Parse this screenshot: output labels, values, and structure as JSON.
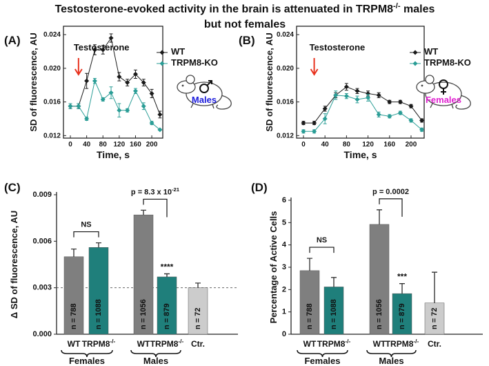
{
  "title": [
    "Testosterone-evoked activity in the brain is attenuated in TRPM8-/- males",
    "but not females"
  ],
  "chart_data": [
    {
      "type": "line",
      "panel": "(A)",
      "x": [
        0,
        20,
        40,
        60,
        80,
        100,
        120,
        140,
        160,
        180,
        200,
        220
      ],
      "series": [
        {
          "name": "WT",
          "color": "#1a1a1a",
          "values": [
            0.0155,
            0.0155,
            0.0185,
            0.0222,
            0.0222,
            0.0236,
            0.019,
            0.0183,
            0.0193,
            0.0183,
            0.017,
            0.0145
          ],
          "errors": [
            0.0003,
            0.0003,
            0.0009,
            0.0006,
            0.0005,
            0.0005,
            0.0005,
            0.0004,
            0.0005,
            0.0004,
            0.0005,
            0.0004
          ]
        },
        {
          "name": "TRPM8-KO",
          "color": "#2a9d96",
          "values": [
            0.0155,
            0.0155,
            0.014,
            0.0185,
            0.0163,
            0.0171,
            0.015,
            0.015,
            0.0173,
            0.0155,
            0.0135,
            0.0127
          ],
          "errors": [
            0.0003,
            0.0003,
            0.0002,
            0.0003,
            0.0002,
            0.0007,
            0.0008,
            0.0002,
            0.0003,
            0.0004,
            0.0002,
            0.0001
          ]
        }
      ],
      "xlabel": "Time, s",
      "ylabel": "SD of fluorescence, AU",
      "xlim": [
        -17,
        227
      ],
      "ylim": [
        0.0117,
        0.025
      ],
      "xticks": [
        0,
        40,
        80,
        120,
        160,
        200
      ],
      "yticks": [
        0.012,
        0.016,
        {
          "value": 0.02,
          "label": "0.020"
        },
        0.024
      ],
      "annotation": "Testosterone",
      "stimulus_x": 20,
      "arrow_color": "#e8321e",
      "inset_label": "Males",
      "inset_color": "#1a1adb"
    },
    {
      "type": "line",
      "panel": "(B)",
      "x": [
        0,
        20,
        40,
        60,
        80,
        100,
        120,
        140,
        160,
        180,
        200,
        220
      ],
      "series": [
        {
          "name": "WT",
          "color": "#1a1a1a",
          "values": [
            0.0135,
            0.0135,
            0.0152,
            0.0168,
            0.0178,
            0.0173,
            0.017,
            0.0168,
            0.016,
            0.016,
            0.0155,
            0.0138
          ],
          "errors": [
            0.0002,
            0.0002,
            0.0003,
            0.0003,
            0.0004,
            0.0003,
            0.0003,
            0.0003,
            0.0002,
            0.0002,
            0.0002,
            0.0002
          ]
        },
        {
          "name": "TRPM8-KO",
          "color": "#2a9d96",
          "values": [
            0.0125,
            0.0125,
            0.014,
            0.0168,
            0.0167,
            0.0163,
            0.0165,
            0.0145,
            0.0143,
            0.0147,
            0.0138,
            0.0127
          ],
          "errors": [
            0.0002,
            0.0002,
            0.0006,
            0.0005,
            0.0003,
            0.0004,
            0.0004,
            0.0003,
            0.0002,
            0.0002,
            0.0002,
            0.0002
          ]
        }
      ],
      "xlabel": "Time, s",
      "ylabel": "SD of fluorescence, AU",
      "xlim": [
        -12.8,
        224.4
      ],
      "ylim": [
        0.0117,
        0.025
      ],
      "xticks": [
        0,
        40,
        80,
        120,
        160,
        200
      ],
      "yticks": [
        0.012,
        0.016,
        {
          "value": 0.02,
          "label": "0.020"
        },
        0.024
      ],
      "annotation": "Testosterone",
      "stimulus_x": 20,
      "arrow_color": "#e8321e",
      "inset_label": "Females",
      "inset_color": "#e020d0"
    },
    {
      "type": "bar",
      "panel": "(C)",
      "categories": [
        "WT",
        "TRPM8-/-",
        "WT",
        "TRPM8-/-",
        "Ctr."
      ],
      "values": [
        0.005,
        0.0056,
        0.0077,
        0.0037,
        0.003
      ],
      "errors": [
        0.0005,
        0.0003,
        0.0003,
        0.0002,
        0.0003
      ],
      "colors": [
        "#7f7f7f",
        "#1f7f7b",
        "#7f7f7f",
        "#1f7f7b",
        "#cccccc"
      ],
      "bar_labels": [
        "n = 788",
        "n = 1088",
        "n = 1056",
        "n = 879",
        "n = 72"
      ],
      "groups": [
        "Females",
        "Males"
      ],
      "brackets": [
        "NS",
        "p = 8.3 x 10-21"
      ],
      "annotations": [
        "****"
      ],
      "ylabel": "Δ SD of fluorescence, AU",
      "ylim": [
        0,
        0.009
      ],
      "yticks": [
        {
          "value": 0,
          "label": "0.000"
        },
        0.003,
        0.006,
        0.009
      ],
      "reference_line": 0.003
    },
    {
      "type": "bar",
      "panel": "(D)",
      "categories": [
        "WT",
        "TRPM8-/-",
        "WT",
        "TRPM8-/-",
        "Ctr."
      ],
      "values": [
        2.85,
        2.12,
        4.92,
        1.82,
        1.4
      ],
      "errors": [
        0.55,
        0.42,
        0.65,
        0.45,
        1.38
      ],
      "colors": [
        "#7f7f7f",
        "#1f7f7b",
        "#7f7f7f",
        "#1f7f7b",
        "#cccccc"
      ],
      "bar_labels": [
        "n = 788",
        "n = 1088",
        "n = 1056",
        "n = 879",
        "n = 72"
      ],
      "groups": [
        "Females",
        "Males"
      ],
      "brackets": [
        "NS",
        "p = 0.0002"
      ],
      "annotations": [
        "***"
      ],
      "ylabel": "Percentage of Active Cells",
      "ylim": [
        0,
        6
      ],
      "yticks": [
        0,
        1,
        2,
        3,
        4,
        5,
        6
      ]
    }
  ]
}
